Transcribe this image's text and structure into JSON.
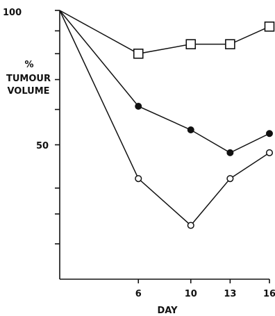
{
  "chart_data": {
    "type": "line",
    "title": "",
    "xlabel": "DAY",
    "ylabel": "% TUMOUR VOLUME",
    "ylabel_lines": [
      "%",
      "TUMOUR",
      "VOLUME"
    ],
    "xlim": [
      0,
      16
    ],
    "ylim": [
      25,
      100
    ],
    "y_scale": "log",
    "x_ticks": [
      6,
      10,
      13,
      16
    ],
    "x_tick_labels": [
      "6",
      "10",
      "13",
      "16"
    ],
    "y_ticks_labeled": [
      100,
      50
    ],
    "y_tick_labels": [
      "100",
      "50"
    ],
    "y_ticks_unlabeled": [
      90,
      80,
      70,
      60,
      40,
      35,
      30
    ],
    "grid": false,
    "series": [
      {
        "marker": "open-square",
        "x": [
          0,
          6,
          10,
          13,
          16
        ],
        "y": [
          100,
          80,
          84,
          84,
          92
        ]
      },
      {
        "marker": "filled-circle",
        "x": [
          0,
          6,
          10,
          13,
          16
        ],
        "y": [
          100,
          61,
          54,
          48,
          53
        ]
      },
      {
        "marker": "open-circle",
        "x": [
          0,
          6,
          10,
          13,
          16
        ],
        "y": [
          100,
          42,
          33,
          42,
          48
        ]
      }
    ]
  }
}
